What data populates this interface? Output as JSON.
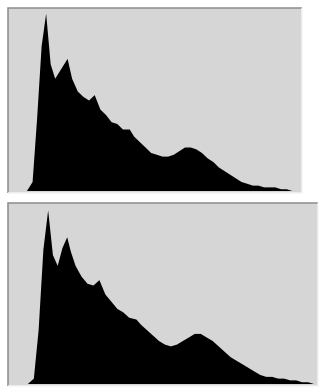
{
  "chart_data": [
    {
      "type": "area",
      "color": "#000000",
      "background": "#d6d6d6",
      "xlim": [
        0,
        255
      ],
      "ylim": [
        0,
        100
      ],
      "x": [
        0,
        15,
        20,
        24,
        28,
        32,
        36,
        40,
        44,
        48,
        51,
        55,
        60,
        65,
        70,
        75,
        80,
        85,
        90,
        95,
        100,
        106,
        110,
        115,
        120,
        125,
        130,
        135,
        140,
        145,
        150,
        155,
        160,
        165,
        170,
        175,
        180,
        185,
        190,
        195,
        200,
        205,
        210,
        215,
        220,
        225,
        230,
        235,
        240,
        245,
        250,
        255
      ],
      "values": [
        0,
        0,
        5,
        40,
        80,
        98,
        70,
        62,
        66,
        70,
        73,
        62,
        55,
        52,
        50,
        53,
        45,
        42,
        38,
        37,
        34,
        34,
        30,
        27,
        24,
        21,
        20,
        19,
        19,
        20,
        22,
        24,
        24,
        23,
        21,
        18,
        16,
        13,
        11,
        9,
        7,
        5,
        4,
        3,
        3,
        2,
        2,
        2,
        1,
        1,
        0,
        0
      ]
    },
    {
      "type": "area",
      "color": "#000000",
      "background": "#d6d6d6",
      "xlim": [
        0,
        255
      ],
      "ylim": [
        0,
        100
      ],
      "x": [
        0,
        15,
        20,
        24,
        28,
        32,
        36,
        40,
        44,
        48,
        51,
        55,
        60,
        65,
        70,
        75,
        80,
        85,
        90,
        95,
        100,
        106,
        110,
        115,
        120,
        125,
        130,
        135,
        140,
        145,
        150,
        155,
        160,
        165,
        170,
        175,
        180,
        185,
        190,
        195,
        200,
        205,
        210,
        215,
        220,
        225,
        230,
        235,
        240,
        245,
        250,
        255
      ],
      "values": [
        0,
        0,
        3,
        30,
        75,
        97,
        72,
        66,
        76,
        82,
        74,
        66,
        60,
        56,
        55,
        58,
        50,
        46,
        42,
        40,
        37,
        36,
        33,
        30,
        27,
        24,
        22,
        21,
        22,
        24,
        26,
        28,
        28,
        26,
        24,
        21,
        18,
        15,
        13,
        11,
        9,
        7,
        5,
        4,
        4,
        3,
        3,
        2,
        2,
        1,
        1,
        0
      ]
    }
  ]
}
